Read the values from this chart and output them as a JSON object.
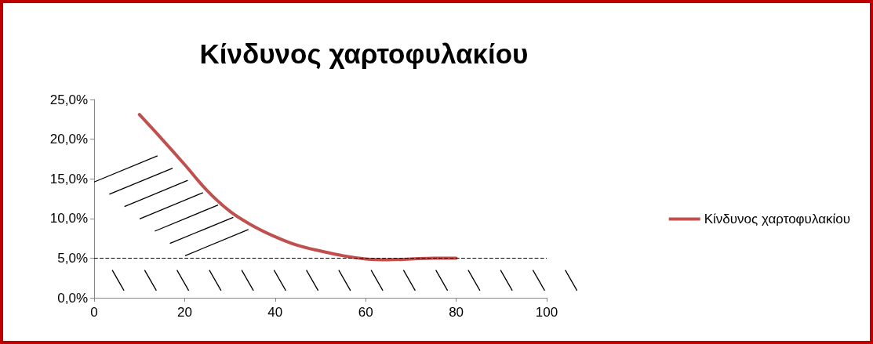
{
  "chart_data": {
    "type": "line",
    "title": "Κίνδυνος χαρτοφυλακίου",
    "x": [
      10,
      15,
      20,
      25,
      30,
      35,
      40,
      45,
      50,
      55,
      60,
      65,
      70,
      75,
      80
    ],
    "series": [
      {
        "name": "Κίνδυνος χαρτοφυλακίου",
        "color": "#c0504d",
        "values": [
          23.1,
          20.0,
          16.8,
          13.5,
          10.9,
          9.1,
          7.7,
          6.6,
          5.9,
          5.3,
          4.9,
          4.8,
          4.9,
          5.0,
          5.0
        ]
      }
    ],
    "xlim": [
      0,
      100
    ],
    "xticks": [
      0,
      20,
      40,
      60,
      80,
      100
    ],
    "ylim": [
      0,
      25
    ],
    "yticks": [
      {
        "value": 0,
        "label": "0,0%"
      },
      {
        "value": 5,
        "label": "5,0%"
      },
      {
        "value": 10,
        "label": "10,0%"
      },
      {
        "value": 15,
        "label": "15,0%"
      },
      {
        "value": 20,
        "label": "20,0%"
      },
      {
        "value": 25,
        "label": "25,0%"
      }
    ],
    "ref_lines": [
      {
        "axis": "y",
        "value": 5,
        "color": "#000000",
        "line_style": "dashed"
      }
    ],
    "legend": "right",
    "grid": false,
    "marker": "none",
    "line_style": "solid"
  }
}
